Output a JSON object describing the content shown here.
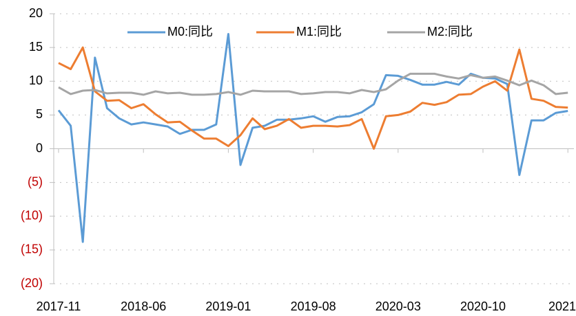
{
  "chart_data": {
    "type": "line",
    "categories": [
      "2017-11",
      null,
      null,
      null,
      null,
      null,
      null,
      "2018-06",
      null,
      null,
      null,
      null,
      null,
      null,
      "2019-01",
      null,
      null,
      null,
      null,
      null,
      null,
      "2019-08",
      null,
      null,
      null,
      null,
      null,
      null,
      "2020-03",
      null,
      null,
      null,
      null,
      null,
      null,
      "2020-10",
      null,
      null,
      null,
      null,
      null,
      null,
      "2021"
    ],
    "series": [
      {
        "name": "M0:同比",
        "color": "#5b9bd5",
        "values": [
          5.7,
          3.4,
          -13.8,
          13.5,
          6.0,
          4.5,
          3.6,
          3.9,
          3.6,
          3.3,
          2.2,
          2.8,
          2.8,
          3.6,
          17.0,
          -2.4,
          3.1,
          3.4,
          4.3,
          4.3,
          4.5,
          4.8,
          4.0,
          4.7,
          4.8,
          5.4,
          6.6,
          10.9,
          10.8,
          10.2,
          9.5,
          9.5,
          9.9,
          9.5,
          11.1,
          10.5,
          10.4,
          9.6,
          -3.9,
          4.2,
          4.2,
          5.3,
          5.6
        ]
      },
      {
        "name": "M1:同比",
        "color": "#ed7d31",
        "values": [
          12.7,
          11.8,
          15.0,
          8.5,
          7.1,
          7.2,
          6.0,
          6.6,
          5.1,
          3.9,
          4.0,
          2.7,
          1.5,
          1.5,
          0.4,
          2.0,
          4.5,
          2.9,
          3.4,
          4.4,
          3.1,
          3.4,
          3.4,
          3.3,
          3.5,
          4.4,
          0.0,
          4.8,
          5.0,
          5.5,
          6.8,
          6.5,
          6.9,
          8.0,
          8.1,
          9.2,
          10.0,
          8.6,
          14.7,
          7.4,
          7.1,
          6.2,
          6.1
        ]
      },
      {
        "name": "M2:同比",
        "color": "#a5a5a5",
        "values": [
          9.1,
          8.1,
          8.6,
          8.7,
          8.2,
          8.3,
          8.3,
          8.0,
          8.5,
          8.2,
          8.3,
          8.0,
          8.0,
          8.1,
          8.4,
          8.0,
          8.6,
          8.5,
          8.5,
          8.5,
          8.1,
          8.2,
          8.4,
          8.4,
          8.2,
          8.7,
          8.4,
          8.8,
          10.1,
          11.1,
          11.1,
          11.1,
          10.7,
          10.4,
          10.9,
          10.5,
          10.7,
          10.1,
          9.4,
          10.1,
          9.4,
          8.1,
          8.3
        ]
      }
    ],
    "ylim": [
      -20,
      20
    ],
    "yticks": [
      {
        "value": -20,
        "label": "(20)"
      },
      {
        "value": -15,
        "label": "(15)"
      },
      {
        "value": -10,
        "label": "(10)"
      },
      {
        "value": -5,
        "label": "(5)"
      },
      0,
      5,
      10,
      15,
      20
    ],
    "grid": true,
    "legend": "top"
  }
}
